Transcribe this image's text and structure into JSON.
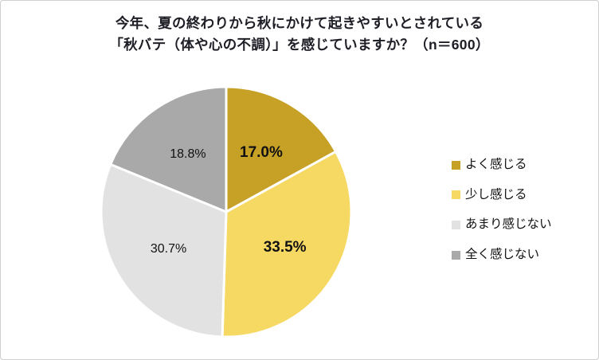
{
  "chart_data": {
    "type": "pie",
    "title_line1": "今年、夏の終わりから秋にかけて起きやすいとされている",
    "title_line2": "「秋バテ（体や心の不調）」を感じていますか？（n＝600）",
    "n": 600,
    "start_angle_deg": 0,
    "direction": "clockwise",
    "legend_position": "right",
    "segments": [
      {
        "label": "よく感じる",
        "value": 17.0,
        "display": "17.0%",
        "color": "#C7A125",
        "emphasis": true
      },
      {
        "label": "少し感じる",
        "value": 33.5,
        "display": "33.5%",
        "color": "#F6D963",
        "emphasis": true
      },
      {
        "label": "あまり感じない",
        "value": 30.7,
        "display": "30.7%",
        "color": "#E2E2E2",
        "emphasis": false
      },
      {
        "label": "全く感じない",
        "value": 18.8,
        "display": "18.8%",
        "color": "#A9A9A9",
        "emphasis": false
      }
    ]
  }
}
